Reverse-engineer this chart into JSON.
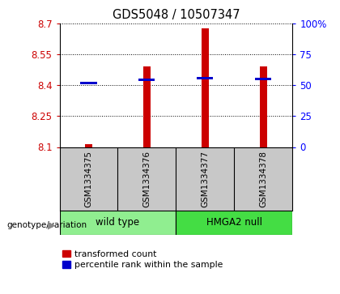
{
  "title": "GDS5048 / 10507347",
  "samples": [
    "GSM1334375",
    "GSM1334376",
    "GSM1334377",
    "GSM1334378"
  ],
  "red_values": [
    8.113,
    8.49,
    8.678,
    8.49
  ],
  "blue_values": [
    8.41,
    8.425,
    8.435,
    8.43
  ],
  "ymin": 8.1,
  "ymax": 8.7,
  "yticks": [
    8.1,
    8.25,
    8.4,
    8.55,
    8.7
  ],
  "ytick_labels": [
    "8.1",
    "8.25",
    "8.4",
    "8.55",
    "8.7"
  ],
  "right_yticks": [
    0,
    25,
    50,
    75,
    100
  ],
  "right_ytick_labels": [
    "0",
    "25",
    "50",
    "75",
    "100%"
  ],
  "red_color": "#cc0000",
  "blue_color": "#0000cc",
  "genotype_groups": [
    {
      "label": "wild type",
      "color": "#90ee90"
    },
    {
      "label": "HMGA2 null",
      "color": "#44dd44"
    }
  ],
  "legend_red": "transformed count",
  "legend_blue": "percentile rank within the sample",
  "genotype_label": "genotype/variation",
  "bg_color": "#ffffff",
  "tick_bg_color": "#c8c8c8"
}
